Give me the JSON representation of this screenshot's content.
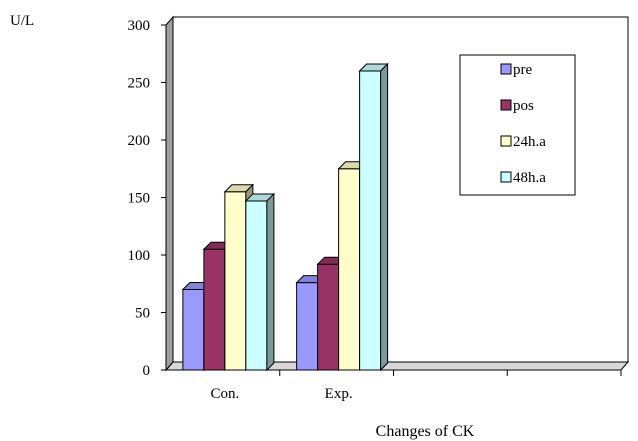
{
  "chart_data": {
    "type": "bar",
    "title": "",
    "xlabel": "Changes of CK",
    "ylabel": "U/L",
    "ylim": [
      0,
      300
    ],
    "yticks": [
      0,
      50,
      100,
      150,
      200,
      250,
      300
    ],
    "categories": [
      "Con.",
      "Exp."
    ],
    "series": [
      {
        "name": "pre",
        "values": [
          70,
          76
        ],
        "color": "#9999FF"
      },
      {
        "name": "pos",
        "values": [
          105,
          92
        ],
        "color": "#993366"
      },
      {
        "name": "24h.a",
        "values": [
          155,
          175
        ],
        "color": "#FFFFCC"
      },
      {
        "name": "48h.a",
        "values": [
          147,
          260
        ],
        "color": "#CCFFFF"
      }
    ],
    "legend_position": "top-right",
    "grid": false,
    "style": "3d-clustered"
  }
}
